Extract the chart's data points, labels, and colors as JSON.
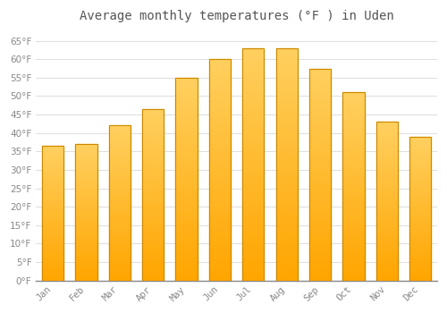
{
  "title": "Average monthly temperatures (°F ) in Uden",
  "months": [
    "Jan",
    "Feb",
    "Mar",
    "Apr",
    "May",
    "Jun",
    "Jul",
    "Aug",
    "Sep",
    "Oct",
    "Nov",
    "Dec"
  ],
  "values": [
    36.5,
    37.0,
    42.0,
    46.5,
    55.0,
    60.0,
    63.0,
    63.0,
    57.5,
    51.0,
    43.0,
    39.0
  ],
  "bar_color_main": "#FFA500",
  "bar_color_light": "#FFD060",
  "bar_edge_color": "#CC8800",
  "ylim": [
    0,
    68
  ],
  "yticks": [
    0,
    5,
    10,
    15,
    20,
    25,
    30,
    35,
    40,
    45,
    50,
    55,
    60,
    65
  ],
  "background_color": "#FFFFFF",
  "plot_bg_color": "#FFFFFF",
  "grid_color": "#E0E0E0",
  "title_fontsize": 10,
  "tick_fontsize": 7.5,
  "tick_color": "#888888",
  "title_color": "#555555"
}
